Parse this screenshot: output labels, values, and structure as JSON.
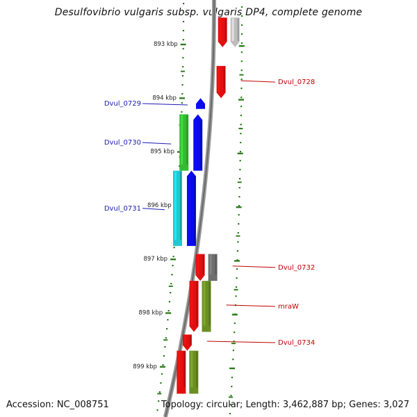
{
  "title": "Desulfovibrio vulgaris subsp. vulgaris DP4, complete genome",
  "footer": {
    "accession": "Accession: NC_008751",
    "summary": "Topology: circular; Length: 3,462,887 bp; Genes: 3,027"
  },
  "colors": {
    "backbone": "#808080",
    "ruler": "#2e7d1e",
    "label_left": "#1a1ab4",
    "label_right": "#c00000",
    "gene_red": "#e01010",
    "gene_red_light": "#ff5050",
    "gene_blue": "#0a0af0",
    "gene_green": "#33bb33",
    "gene_cyan": "#20c8d0",
    "gene_olive": "#6b8e23",
    "gene_gray_light": "#bdbdbd",
    "gene_gray_dark": "#6e6e6e"
  },
  "ruler_labels": [
    "893 kbp",
    "894 kbp",
    "895 kbp",
    "896 kbp",
    "897 kbp",
    "898 kbp",
    "899 kbp"
  ],
  "gene_labels": {
    "left": [
      "Dvul_0729",
      "Dvul_0730",
      "Dvul_0731"
    ],
    "right": [
      "Dvul_0728",
      "Dvul_0732",
      "mraW",
      "Dvul_0734"
    ]
  },
  "features": [
    {
      "track": "inner",
      "color": "gene_red",
      "direction": "down",
      "kbp_start": 892.5,
      "kbp_end": 893.05
    },
    {
      "track": "outer",
      "color": "gene_gray_light",
      "direction": "down",
      "kbp_start": 892.5,
      "kbp_end": 893.05
    },
    {
      "track": "inner",
      "color": "gene_red",
      "direction": "down",
      "kbp_start": 893.4,
      "kbp_end": 894.0,
      "label": "Dvul_0728"
    },
    {
      "track": "inner",
      "color": "gene_blue",
      "direction": "up",
      "kbp_start": 894.0,
      "kbp_end": 894.2,
      "label": "Dvul_0729"
    },
    {
      "track": "inner",
      "color": "gene_blue",
      "direction": "up",
      "kbp_start": 894.3,
      "kbp_end": 895.35
    },
    {
      "track": "outer",
      "color": "gene_green",
      "direction": "none",
      "kbp_start": 894.3,
      "kbp_end": 895.35,
      "label": "Dvul_0730"
    },
    {
      "track": "inner",
      "color": "gene_blue",
      "direction": "up",
      "kbp_start": 895.35,
      "kbp_end": 896.75
    },
    {
      "track": "outer",
      "color": "gene_cyan",
      "direction": "none",
      "kbp_start": 895.35,
      "kbp_end": 896.75,
      "label": "Dvul_0731"
    },
    {
      "track": "inner",
      "color": "gene_red",
      "direction": "down",
      "kbp_start": 896.9,
      "kbp_end": 897.4
    },
    {
      "track": "outer",
      "color": "gene_gray_dark",
      "direction": "none",
      "kbp_start": 896.9,
      "kbp_end": 897.4,
      "label": "Dvul_0732"
    },
    {
      "track": "inner",
      "color": "gene_red",
      "direction": "down",
      "kbp_start": 897.4,
      "kbp_end": 898.35
    },
    {
      "track": "outer",
      "color": "gene_olive",
      "direction": "none",
      "kbp_start": 897.4,
      "kbp_end": 898.35,
      "label": "mraW"
    },
    {
      "track": "inner",
      "color": "gene_red",
      "direction": "down",
      "kbp_start": 898.4,
      "kbp_end": 898.7,
      "label": "Dvul_0734"
    },
    {
      "track": "inner",
      "color": "gene_red",
      "direction": "none",
      "kbp_start": 898.7,
      "kbp_end": 899.5
    },
    {
      "track": "outer",
      "color": "gene_olive",
      "direction": "none",
      "kbp_start": 898.7,
      "kbp_end": 899.5
    }
  ]
}
